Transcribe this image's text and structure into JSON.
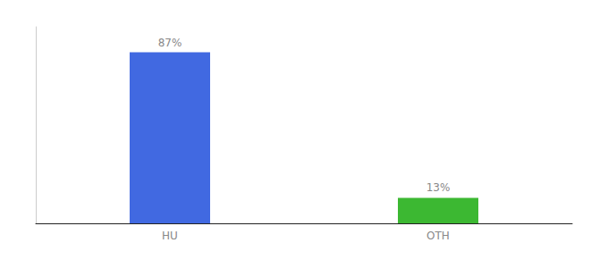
{
  "chart_data": {
    "type": "bar",
    "categories": [
      "HU",
      "OTH"
    ],
    "values": [
      87,
      13
    ],
    "value_labels": [
      "87%",
      "13%"
    ],
    "colors": [
      "#4169e1",
      "#3cb832"
    ],
    "ylim": [
      0,
      100
    ],
    "grid": false,
    "data_labels": true,
    "tick_labels": "x"
  }
}
